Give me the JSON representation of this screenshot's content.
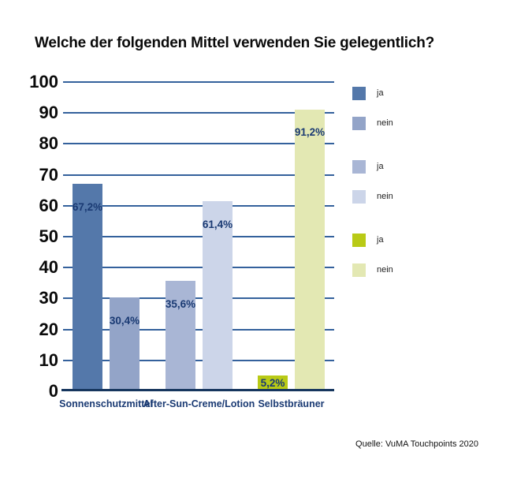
{
  "page": {
    "title": "Welche der folgenden Mittel verwenden Sie gelegentlich?",
    "source": "Quelle: VuMA Touchpoints 2020"
  },
  "chart_data": {
    "type": "bar",
    "title": "Welche der folgenden Mittel verwenden Sie gelegentlich?",
    "xlabel": "",
    "ylabel": "",
    "ylim": [
      0,
      100
    ],
    "y_ticks": [
      0,
      10,
      20,
      30,
      40,
      50,
      60,
      70,
      80,
      90,
      100
    ],
    "grid": true,
    "legend_position": "right",
    "categories": [
      "Sonnenschutzmittel",
      "After-Sun-Creme/Lotion",
      "Selbstbräuner"
    ],
    "groups": [
      {
        "category": "Sonnenschutzmittel",
        "bars": [
          {
            "series": "ja",
            "value": 67.2,
            "label": "67,2%",
            "color": "#5478aa"
          },
          {
            "series": "nein",
            "value": 30.4,
            "label": "30,4%",
            "color": "#93a4c8"
          }
        ]
      },
      {
        "category": "After-Sun-Creme/Lotion",
        "bars": [
          {
            "series": "ja",
            "value": 35.6,
            "label": "35,6%",
            "color": "#a9b6d5"
          },
          {
            "series": "nein",
            "value": 61.4,
            "label": "61,4%",
            "color": "#ccd5e9"
          }
        ]
      },
      {
        "category": "Selbstbräuner",
        "bars": [
          {
            "series": "ja",
            "value": 5.2,
            "label": "5,2%",
            "color": "#b9ca16"
          },
          {
            "series": "nein",
            "value": 91.2,
            "label": "91,2%",
            "color": "#e3e8b3"
          }
        ]
      }
    ],
    "legend": [
      {
        "label": "ja",
        "color": "#5478aa"
      },
      {
        "label": "nein",
        "color": "#93a4c8"
      },
      {
        "label": "ja",
        "color": "#a9b6d5"
      },
      {
        "label": "nein",
        "color": "#ccd5e9"
      },
      {
        "label": "ja",
        "color": "#b9ca16"
      },
      {
        "label": "nein",
        "color": "#e3e8b3"
      }
    ],
    "colors": {
      "grid_line": "#34619c",
      "axis_line": "#16365e",
      "value_label": "#1a3a73",
      "category_label": "#1a3a73"
    }
  }
}
